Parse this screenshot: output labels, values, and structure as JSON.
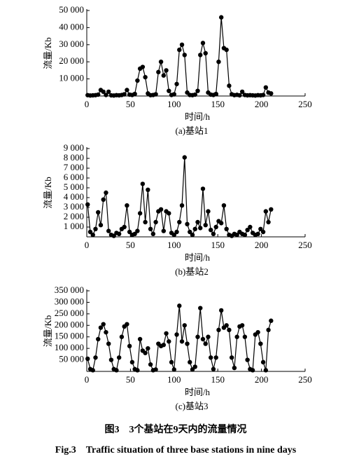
{
  "chart_data": [
    {
      "type": "line",
      "caption": "(a)基站1",
      "xlabel": "时间/h",
      "ylabel": "流量/Kb",
      "color": "#000000",
      "xlim": [
        0,
        250
      ],
      "xticks": [
        0,
        50,
        100,
        150,
        200,
        250
      ],
      "ylim": [
        0,
        50000
      ],
      "yticks": [
        {
          "value": 10000,
          "label": "10 000"
        },
        {
          "value": 20000,
          "label": "20 000"
        },
        {
          "value": 30000,
          "label": "30 000"
        },
        {
          "value": 40000,
          "label": "40 000"
        },
        {
          "value": 50000,
          "label": "50 000"
        }
      ],
      "x": [
        1,
        4,
        7,
        10,
        13,
        16,
        19,
        22,
        25,
        28,
        31,
        34,
        37,
        40,
        43,
        46,
        49,
        52,
        55,
        58,
        61,
        64,
        67,
        70,
        73,
        76,
        79,
        82,
        85,
        88,
        91,
        94,
        97,
        100,
        103,
        106,
        109,
        112,
        115,
        118,
        121,
        124,
        127,
        130,
        133,
        136,
        139,
        142,
        145,
        148,
        151,
        154,
        157,
        160,
        163,
        166,
        169,
        172,
        175,
        178,
        181,
        184,
        187,
        190,
        193,
        196,
        199,
        202,
        205,
        208,
        211
      ],
      "values": [
        500,
        300,
        400,
        500,
        800,
        3500,
        2500,
        600,
        2500,
        400,
        300,
        500,
        400,
        600,
        1000,
        3500,
        800,
        600,
        1200,
        9000,
        16000,
        17000,
        11000,
        1500,
        500,
        600,
        1000,
        14000,
        20000,
        12000,
        15000,
        3000,
        600,
        1000,
        7000,
        27000,
        30000,
        24000,
        2000,
        600,
        500,
        800,
        3000,
        24000,
        31000,
        25000,
        2000,
        800,
        600,
        1200,
        20000,
        46000,
        28000,
        27000,
        6000,
        1000,
        500,
        700,
        400,
        2500,
        600,
        400,
        500,
        400,
        300,
        500,
        400,
        600,
        5000,
        2000,
        1500
      ]
    },
    {
      "type": "line",
      "caption": "(b)基站2",
      "xlabel": "时间/h",
      "ylabel": "流量/Kb",
      "color": "#000000",
      "xlim": [
        0,
        250
      ],
      "xticks": [
        0,
        50,
        100,
        150,
        200,
        250
      ],
      "ylim": [
        0,
        9000
      ],
      "yticks": [
        {
          "value": 1000,
          "label": "1 000"
        },
        {
          "value": 2000,
          "label": "2 000"
        },
        {
          "value": 3000,
          "label": "3 000"
        },
        {
          "value": 4000,
          "label": "4 000"
        },
        {
          "value": 5000,
          "label": "5 000"
        },
        {
          "value": 6000,
          "label": "6 000"
        },
        {
          "value": 7000,
          "label": "7 000"
        },
        {
          "value": 8000,
          "label": "8 000"
        },
        {
          "value": 9000,
          "label": "9 000"
        }
      ],
      "x": [
        1,
        4,
        7,
        10,
        13,
        16,
        19,
        22,
        25,
        28,
        31,
        34,
        37,
        40,
        43,
        46,
        49,
        52,
        55,
        58,
        61,
        64,
        67,
        70,
        73,
        76,
        79,
        82,
        85,
        88,
        91,
        94,
        97,
        100,
        103,
        106,
        109,
        112,
        115,
        118,
        121,
        124,
        127,
        130,
        133,
        136,
        139,
        142,
        145,
        148,
        151,
        154,
        157,
        160,
        163,
        166,
        169,
        172,
        175,
        178,
        181,
        184,
        187,
        190,
        193,
        196,
        199,
        202,
        205,
        208,
        211
      ],
      "values": [
        3300,
        500,
        200,
        800,
        2500,
        1200,
        3800,
        4500,
        600,
        200,
        100,
        400,
        300,
        800,
        1000,
        3200,
        500,
        200,
        300,
        600,
        2400,
        5400,
        1500,
        4800,
        800,
        300,
        1500,
        2600,
        2800,
        600,
        2600,
        2400,
        400,
        200,
        500,
        1500,
        3200,
        8100,
        1300,
        500,
        200,
        800,
        1500,
        900,
        4900,
        1200,
        2600,
        700,
        300,
        1000,
        1600,
        1400,
        3200,
        800,
        200,
        100,
        300,
        200,
        500,
        300,
        200,
        700,
        1000,
        400,
        200,
        300,
        800,
        500,
        2600,
        1500,
        2800
      ]
    },
    {
      "type": "line",
      "caption": "(c)基站3",
      "xlabel": "时间/h",
      "ylabel": "流量/Kb",
      "color": "#000000",
      "xlim": [
        0,
        250
      ],
      "xticks": [
        0,
        50,
        100,
        150,
        200,
        250
      ],
      "ylim": [
        0,
        350000
      ],
      "yticks": [
        {
          "value": 50000,
          "label": "50 000"
        },
        {
          "value": 100000,
          "label": "100 000"
        },
        {
          "value": 150000,
          "label": "150 000"
        },
        {
          "value": 200000,
          "label": "200 000"
        },
        {
          "value": 250000,
          "label": "250 000"
        },
        {
          "value": 300000,
          "label": "300 000"
        },
        {
          "value": 350000,
          "label": "350 000"
        }
      ],
      "x": [
        1,
        4,
        7,
        10,
        13,
        16,
        19,
        22,
        25,
        28,
        31,
        34,
        37,
        40,
        43,
        46,
        49,
        52,
        55,
        58,
        61,
        64,
        67,
        70,
        73,
        76,
        79,
        82,
        85,
        88,
        91,
        94,
        97,
        100,
        103,
        106,
        109,
        112,
        115,
        118,
        121,
        124,
        127,
        130,
        133,
        136,
        139,
        142,
        145,
        148,
        151,
        154,
        157,
        160,
        163,
        166,
        169,
        172,
        175,
        178,
        181,
        184,
        187,
        190,
        193,
        196,
        199,
        202,
        205,
        208,
        211
      ],
      "values": [
        55000,
        10000,
        5000,
        60000,
        140000,
        190000,
        205000,
        170000,
        120000,
        50000,
        10000,
        5000,
        60000,
        150000,
        195000,
        205000,
        110000,
        40000,
        10000,
        5000,
        140000,
        90000,
        80000,
        100000,
        30000,
        5000,
        8000,
        120000,
        110000,
        115000,
        165000,
        130000,
        40000,
        8000,
        160000,
        285000,
        130000,
        200000,
        120000,
        40000,
        8000,
        20000,
        150000,
        275000,
        140000,
        120000,
        150000,
        60000,
        10000,
        60000,
        180000,
        265000,
        190000,
        200000,
        180000,
        60000,
        15000,
        150000,
        195000,
        200000,
        150000,
        50000,
        10000,
        5000,
        160000,
        170000,
        120000,
        40000,
        5000,
        180000,
        220000
      ]
    }
  ],
  "caption": {
    "cn": "图3　3个基站在9天内的流量情况",
    "en": "Fig.3　Traffic situation of three base stations in nine days"
  }
}
